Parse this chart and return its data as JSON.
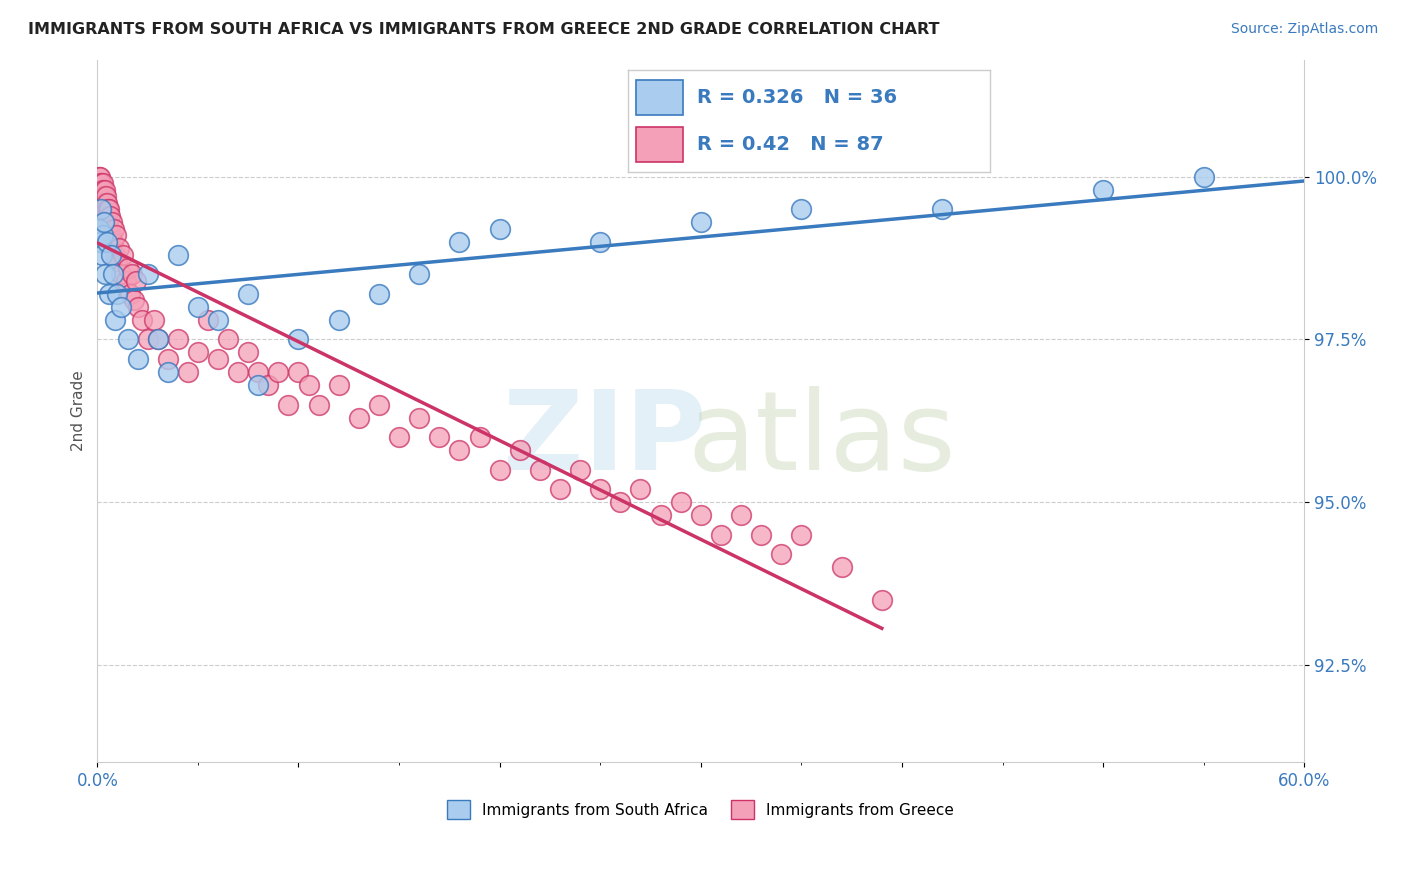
{
  "title": "IMMIGRANTS FROM SOUTH AFRICA VS IMMIGRANTS FROM GREECE 2ND GRADE CORRELATION CHART",
  "source": "Source: ZipAtlas.com",
  "ylabel": "2nd Grade",
  "ytick_labels": [
    "100.0%",
    "97.5%",
    "95.0%",
    "92.5%"
  ],
  "ytick_values": [
    100.0,
    97.5,
    95.0,
    92.5
  ],
  "xlim": [
    0.0,
    60.0
  ],
  "ylim": [
    91.0,
    101.8
  ],
  "legend_blue_label": "Immigrants from South Africa",
  "legend_pink_label": "Immigrants from Greece",
  "R_blue": 0.326,
  "N_blue": 36,
  "R_pink": 0.42,
  "N_pink": 87,
  "blue_color": "#AACCEE",
  "pink_color": "#F4A0B8",
  "trendline_blue": "#3A7ABF",
  "trendline_pink": "#CC3366",
  "south_africa_x": [
    0.1,
    0.15,
    0.2,
    0.25,
    0.3,
    0.35,
    0.4,
    0.5,
    0.6,
    0.7,
    0.8,
    0.9,
    1.0,
    1.2,
    1.5,
    2.0,
    2.5,
    3.0,
    3.5,
    4.0,
    5.0,
    6.0,
    7.5,
    8.0,
    10.0,
    12.0,
    14.0,
    16.0,
    18.0,
    20.0,
    25.0,
    30.0,
    35.0,
    42.0,
    50.0,
    55.0
  ],
  "south_africa_y": [
    99.2,
    99.0,
    99.5,
    98.8,
    99.1,
    99.3,
    98.5,
    99.0,
    98.2,
    98.8,
    98.5,
    97.8,
    98.2,
    98.0,
    97.5,
    97.2,
    98.5,
    97.5,
    97.0,
    98.8,
    98.0,
    97.8,
    98.2,
    96.8,
    97.5,
    97.8,
    98.2,
    98.5,
    99.0,
    99.2,
    99.0,
    99.3,
    99.5,
    99.5,
    99.8,
    100.0
  ],
  "greece_x": [
    0.05,
    0.08,
    0.1,
    0.12,
    0.15,
    0.18,
    0.2,
    0.22,
    0.25,
    0.28,
    0.3,
    0.32,
    0.35,
    0.38,
    0.4,
    0.42,
    0.45,
    0.48,
    0.5,
    0.52,
    0.55,
    0.58,
    0.6,
    0.65,
    0.7,
    0.75,
    0.8,
    0.85,
    0.9,
    0.95,
    1.0,
    1.1,
    1.2,
    1.3,
    1.4,
    1.5,
    1.6,
    1.7,
    1.8,
    1.9,
    2.0,
    2.2,
    2.5,
    2.8,
    3.0,
    3.5,
    4.0,
    4.5,
    5.0,
    5.5,
    6.0,
    6.5,
    7.0,
    7.5,
    8.0,
    8.5,
    9.0,
    9.5,
    10.0,
    10.5,
    11.0,
    12.0,
    13.0,
    14.0,
    15.0,
    16.0,
    17.0,
    18.0,
    19.0,
    20.0,
    21.0,
    22.0,
    23.0,
    24.0,
    25.0,
    26.0,
    27.0,
    28.0,
    29.0,
    30.0,
    31.0,
    32.0,
    33.0,
    34.0,
    35.0,
    37.0,
    39.0
  ],
  "greece_y": [
    99.8,
    100.0,
    99.9,
    99.8,
    100.0,
    99.7,
    99.9,
    99.8,
    99.6,
    99.9,
    99.8,
    99.7,
    99.5,
    99.8,
    99.6,
    99.7,
    99.5,
    99.6,
    99.4,
    99.5,
    99.3,
    99.5,
    99.2,
    99.4,
    99.1,
    99.3,
    99.0,
    99.2,
    98.8,
    99.1,
    98.7,
    98.9,
    98.5,
    98.8,
    98.4,
    98.6,
    98.2,
    98.5,
    98.1,
    98.4,
    98.0,
    97.8,
    97.5,
    97.8,
    97.5,
    97.2,
    97.5,
    97.0,
    97.3,
    97.8,
    97.2,
    97.5,
    97.0,
    97.3,
    97.0,
    96.8,
    97.0,
    96.5,
    97.0,
    96.8,
    96.5,
    96.8,
    96.3,
    96.5,
    96.0,
    96.3,
    96.0,
    95.8,
    96.0,
    95.5,
    95.8,
    95.5,
    95.2,
    95.5,
    95.2,
    95.0,
    95.2,
    94.8,
    95.0,
    94.8,
    94.5,
    94.8,
    94.5,
    94.2,
    94.5,
    94.0,
    93.5
  ]
}
